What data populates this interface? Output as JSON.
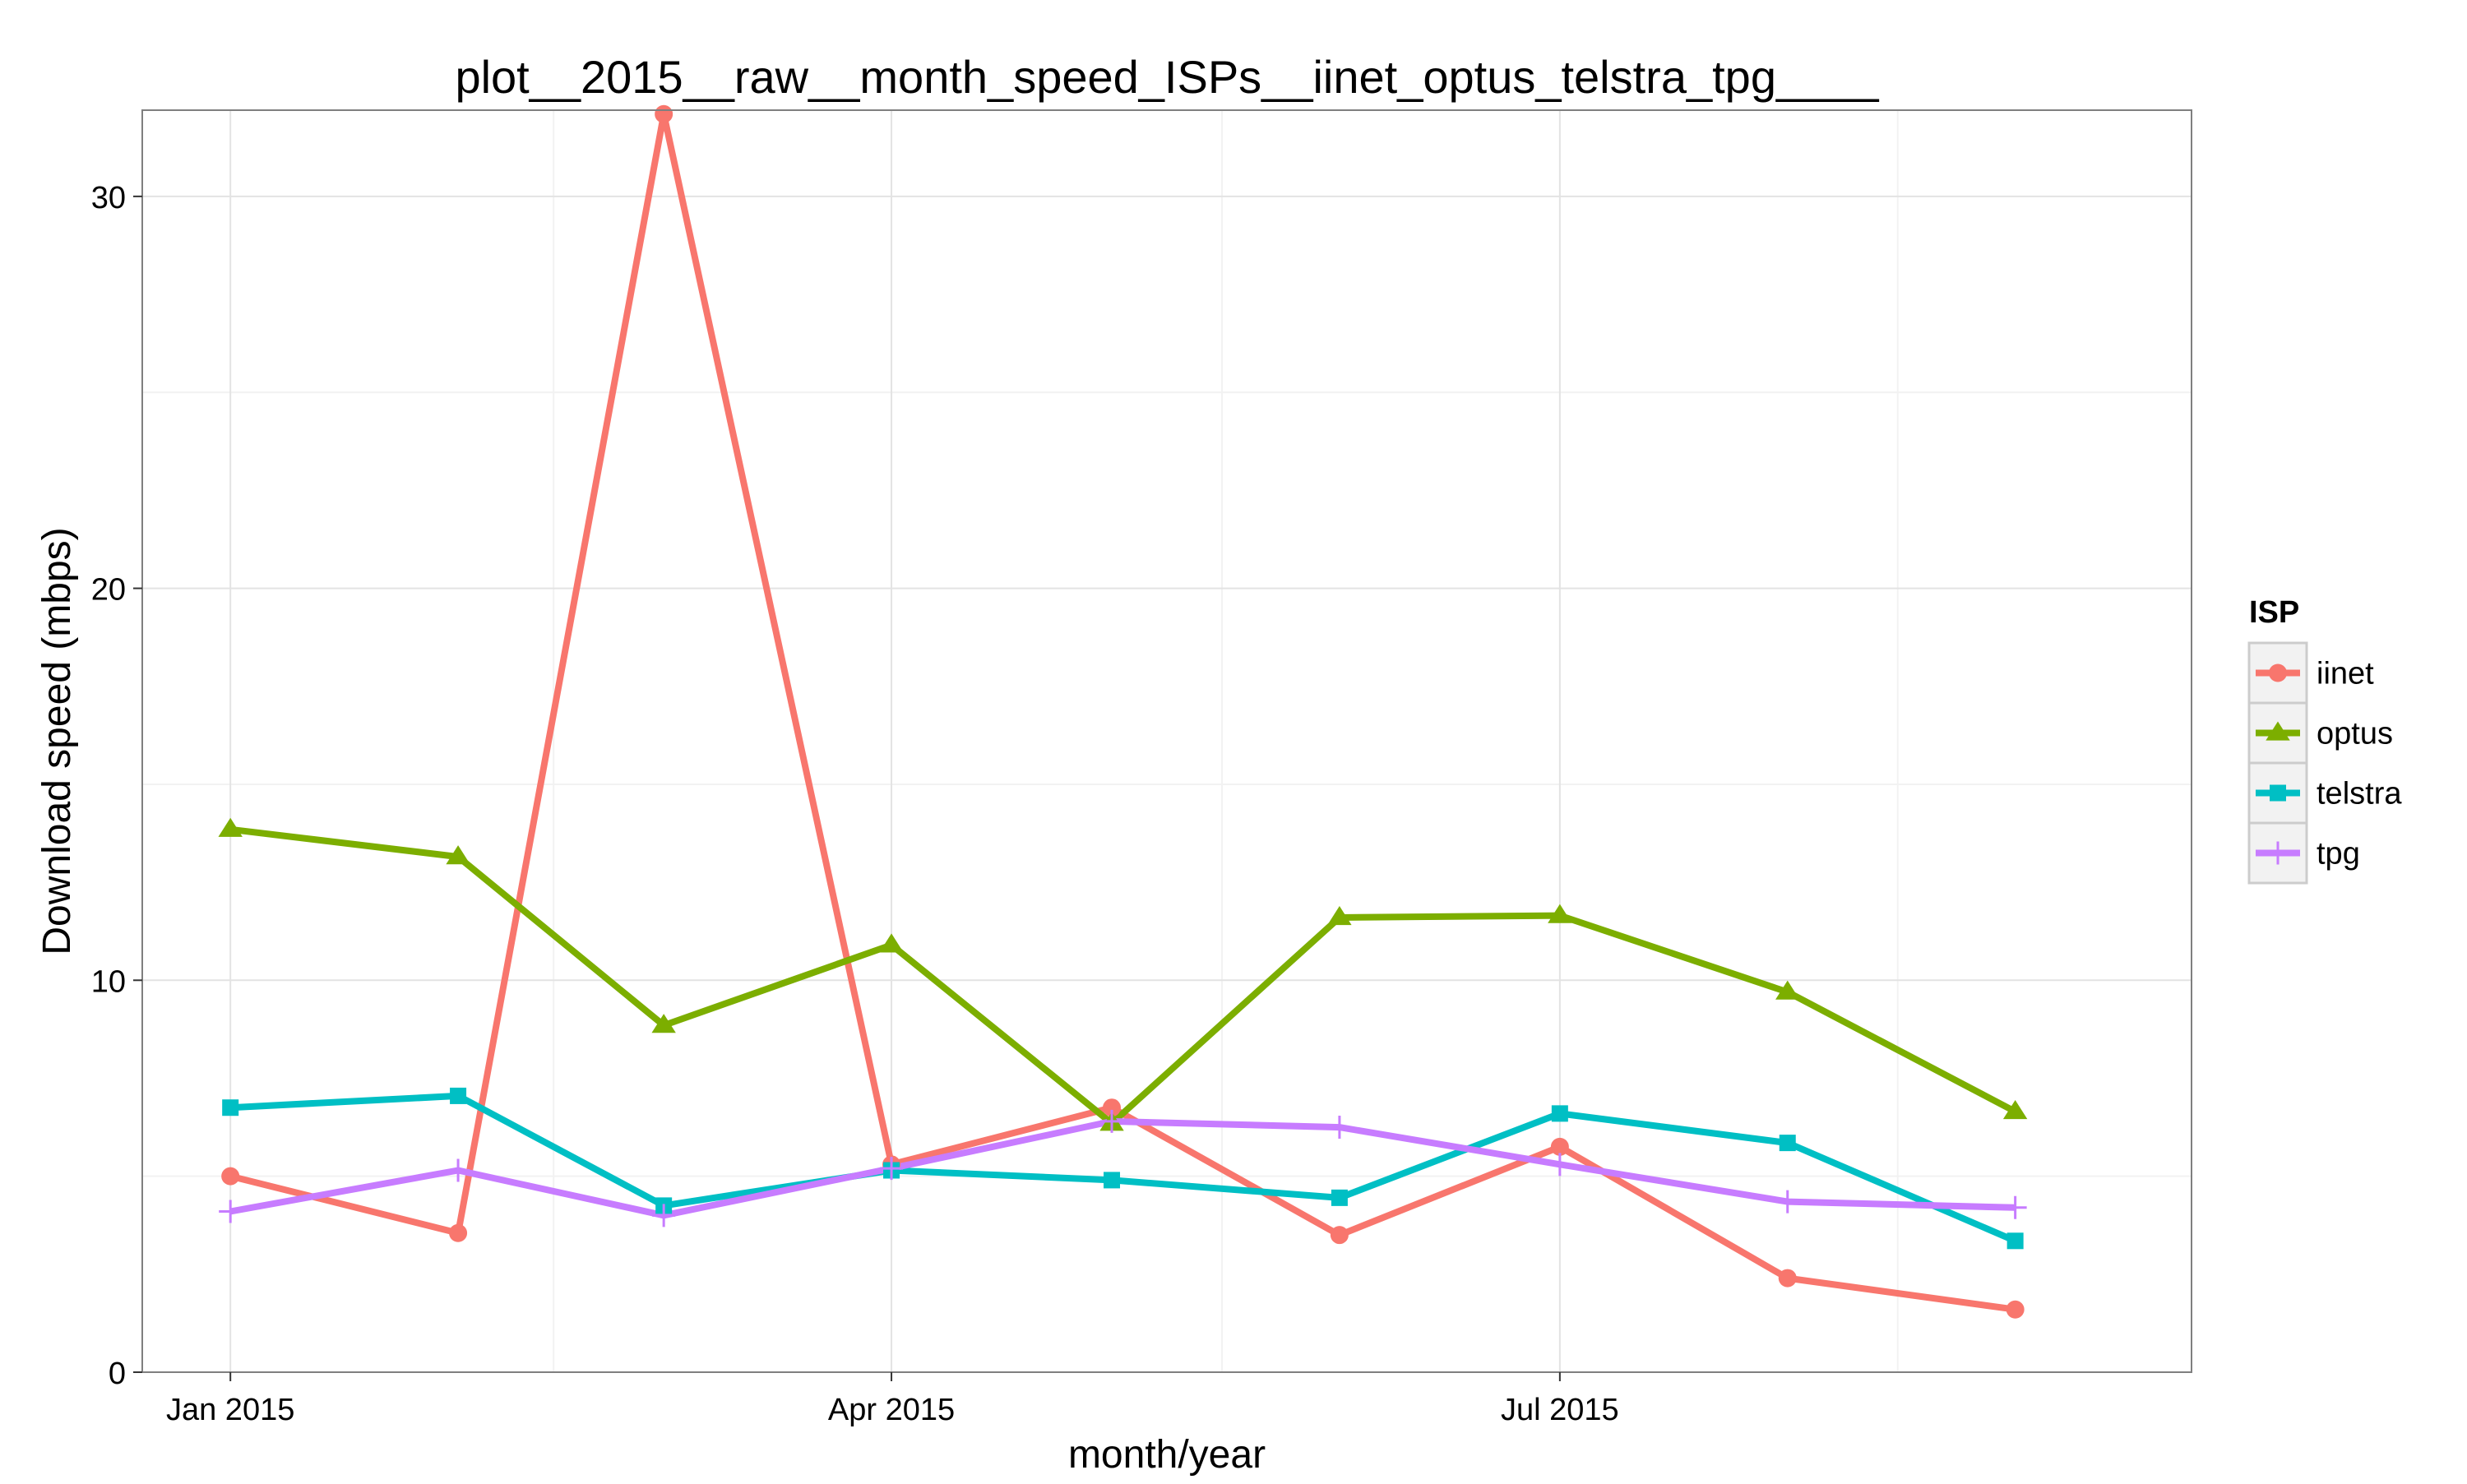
{
  "chart_data": {
    "type": "line",
    "title": "plot__2015__raw__month_speed_ISPs__iinet_optus_telstra_tpg____",
    "xlabel": "month/year",
    "ylabel": "Download speed (mbps)",
    "x": [
      "2015-01-01",
      "2015-02-01",
      "2015-03-01",
      "2015-04-01",
      "2015-05-01",
      "2015-06-01",
      "2015-07-01",
      "2015-08-01",
      "2015-09-01"
    ],
    "xlim": [
      "2014-12-20",
      "2015-09-25"
    ],
    "ylim": [
      0,
      32.2
    ],
    "x_ticks": [
      {
        "date": "2015-01-01",
        "label": "Jan 2015"
      },
      {
        "date": "2015-04-01",
        "label": "Apr 2015"
      },
      {
        "date": "2015-07-01",
        "label": "Jul 2015"
      }
    ],
    "x_minor_dates": [
      "2015-02-14",
      "2015-05-16",
      "2015-08-16"
    ],
    "y_ticks": [
      0,
      10,
      20,
      30
    ],
    "grid": true,
    "legend": {
      "title": "ISP",
      "position": "right"
    },
    "series": [
      {
        "name": "iinet",
        "color": "#F8766D",
        "marker": "circle",
        "values": [
          5.0,
          3.55,
          32.1,
          5.3,
          6.75,
          3.5,
          5.75,
          2.4,
          1.6
        ]
      },
      {
        "name": "optus",
        "color": "#7CAE00",
        "marker": "triangle",
        "values": [
          13.85,
          13.15,
          8.85,
          10.9,
          6.35,
          11.6,
          11.65,
          9.7,
          6.65
        ]
      },
      {
        "name": "telstra",
        "color": "#00BFC4",
        "marker": "square",
        "values": [
          6.75,
          7.05,
          4.25,
          5.15,
          4.9,
          4.45,
          6.6,
          5.85,
          3.35
        ]
      },
      {
        "name": "tpg",
        "color": "#C77CFF",
        "marker": "plus",
        "values": [
          4.1,
          5.15,
          4.0,
          5.2,
          6.4,
          6.25,
          5.3,
          4.35,
          4.2
        ]
      }
    ]
  }
}
